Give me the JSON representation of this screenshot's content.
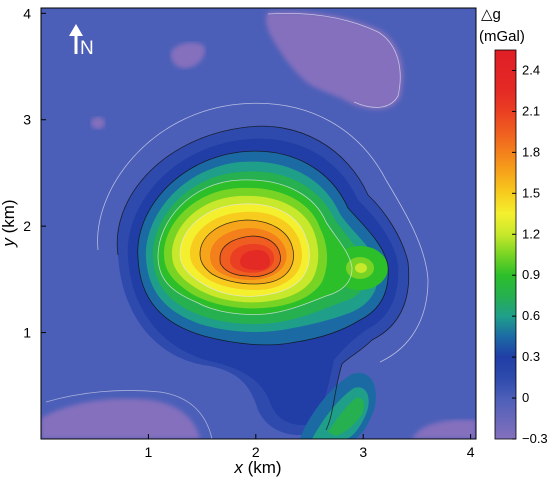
{
  "chart_data": {
    "type": "heatmap",
    "title": "",
    "xlabel_var": "x",
    "xlabel_unit": " (km)",
    "ylabel_var": "y",
    "ylabel_unit": " (km)",
    "xlim": [
      0,
      4.05
    ],
    "ylim": [
      0,
      4.05
    ],
    "x_ticks": [
      1,
      2,
      3,
      4
    ],
    "y_ticks": [
      1,
      2,
      3,
      4
    ],
    "colorbar": {
      "title_line1": "△g",
      "title_line2": "(mGal)",
      "range": [
        -0.3,
        2.55
      ],
      "tick_values": [
        2.4,
        2.1,
        1.8,
        1.5,
        1.2,
        0.9,
        0.6,
        0.3,
        0,
        -0.3
      ],
      "tick_labels": [
        "2.4",
        "2.1",
        "1.8",
        "1.5",
        "1.2",
        "0.9",
        "0.6",
        "0.3",
        "0",
        "−0.3"
      ],
      "stops": [
        {
          "v": -0.3,
          "color": "#8470bd"
        },
        {
          "v": 0.0,
          "color": "#4c5fb8"
        },
        {
          "v": 0.15,
          "color": "#2d4aac"
        },
        {
          "v": 0.3,
          "color": "#203ea6"
        },
        {
          "v": 0.45,
          "color": "#1c6aa4"
        },
        {
          "v": 0.6,
          "color": "#1f9f8a"
        },
        {
          "v": 0.75,
          "color": "#27b04f"
        },
        {
          "v": 0.9,
          "color": "#2dbf2a"
        },
        {
          "v": 1.05,
          "color": "#78d424"
        },
        {
          "v": 1.2,
          "color": "#c8e82b"
        },
        {
          "v": 1.35,
          "color": "#f4f02e"
        },
        {
          "v": 1.5,
          "color": "#f7cc1e"
        },
        {
          "v": 1.65,
          "color": "#f6a51a"
        },
        {
          "v": 1.8,
          "color": "#f4801c"
        },
        {
          "v": 1.95,
          "color": "#ef5e20"
        },
        {
          "v": 2.1,
          "color": "#ea3f22"
        },
        {
          "v": 2.25,
          "color": "#e42a25"
        },
        {
          "v": 2.55,
          "color": "#e01e26"
        }
      ]
    },
    "anomalies": [
      {
        "name": "main-high",
        "x": 2.1,
        "y": 1.66,
        "amplitude_mgal": 2.5
      },
      {
        "name": "east-lobe",
        "x": 3.0,
        "y": 1.62,
        "amplitude_mgal": 0.7
      },
      {
        "name": "south-ridge",
        "x": 2.9,
        "y": 0.3,
        "amplitude_mgal": 0.6
      },
      {
        "name": "northeast-low",
        "x": 3.1,
        "y": 3.3,
        "amplitude_mgal": -0.3
      },
      {
        "name": "southwest-low",
        "x": 1.0,
        "y": 0.5,
        "amplitude_mgal": -0.3
      }
    ],
    "north_arrow_label": "N"
  }
}
